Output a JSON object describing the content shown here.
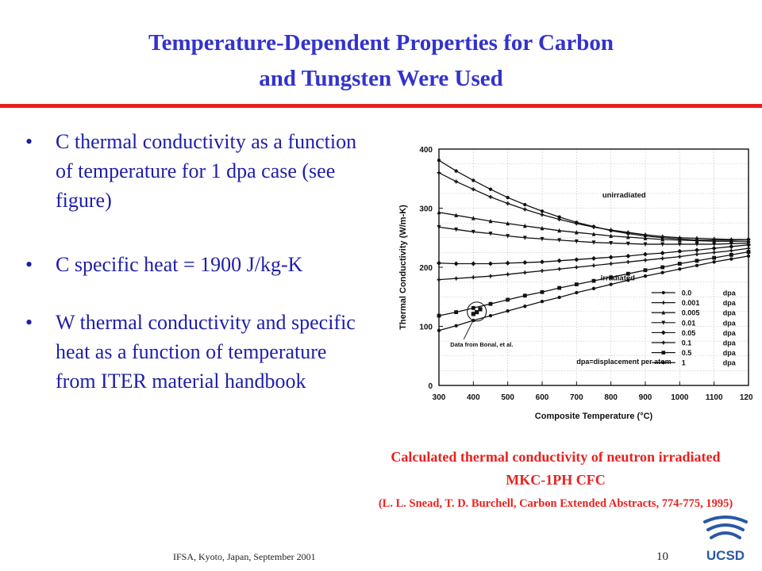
{
  "title": {
    "line1": "Temperature-Dependent Properties for Carbon",
    "line2": "and Tungsten Were Used"
  },
  "bullets": [
    "C thermal conductivity as a function of temperature for 1 dpa case (see figure)",
    "C specific heat = 1900 J/kg-K",
    "W thermal conductivity and specific heat as a function of temperature from ITER material handbook"
  ],
  "bullet_marker": "•",
  "caption": {
    "main": "Calculated thermal conductivity of neutron irradiated MKC-1PH CFC",
    "reference": "(L. L. Snead, T. D. Burchell, Carbon Extended Abstracts, 774-775, 1995)"
  },
  "footer": "IFSA, Kyoto, Japan, September 2001",
  "page_number": "10",
  "logo": {
    "text": "UCSD",
    "color": "#2a58a8"
  },
  "colors": {
    "title": "#3333cc",
    "accent": "#e8211f",
    "body": "#1e1ea8"
  },
  "chart_data": {
    "type": "line",
    "xlabel": "Composite Temperature (°C)",
    "ylabel": "Thermal Conductivity (W/m-K)",
    "xlim": [
      300,
      1200
    ],
    "ylim": [
      0,
      400
    ],
    "xticks": [
      300,
      400,
      500,
      600,
      700,
      800,
      900,
      1000,
      1100,
      1200
    ],
    "yticks": [
      0,
      100,
      200,
      300,
      400
    ],
    "grid": true,
    "legend_position": "bottom-right",
    "legend_unit": "dpa",
    "x": [
      300,
      350,
      400,
      450,
      500,
      550,
      600,
      650,
      700,
      750,
      800,
      850,
      900,
      950,
      1000,
      1050,
      1100,
      1150,
      1200
    ],
    "series": [
      {
        "name": "0.0",
        "marker": "circle",
        "values": [
          381,
          363,
          347,
          332,
          318,
          306,
          295,
          285,
          276,
          269,
          262,
          257,
          253,
          250,
          248,
          246,
          246,
          246,
          247
        ]
      },
      {
        "name": "0.001",
        "marker": "plus",
        "values": [
          360,
          345,
          332,
          319,
          308,
          298,
          289,
          281,
          274,
          268,
          263,
          259,
          255,
          252,
          250,
          249,
          248,
          247,
          247
        ]
      },
      {
        "name": "0.005",
        "marker": "triangle",
        "values": [
          293,
          288,
          283,
          278,
          274,
          270,
          266,
          262,
          259,
          256,
          253,
          251,
          249,
          247,
          246,
          245,
          244,
          244,
          244
        ]
      },
      {
        "name": "0.01",
        "marker": "triangle-down",
        "values": [
          268,
          264,
          260,
          257,
          253,
          250,
          248,
          246,
          244,
          242,
          241,
          240,
          239,
          239,
          239,
          239,
          239,
          240,
          241
        ]
      },
      {
        "name": "0.05",
        "marker": "diamond",
        "values": [
          207,
          206,
          206,
          206,
          207,
          208,
          209,
          211,
          213,
          215,
          217,
          219,
          222,
          224,
          227,
          229,
          232,
          235,
          238
        ]
      },
      {
        "name": "0.1",
        "marker": "plus",
        "values": [
          179,
          181,
          183,
          185,
          188,
          191,
          194,
          197,
          200,
          203,
          206,
          209,
          212,
          215,
          218,
          222,
          225,
          228,
          232
        ]
      },
      {
        "name": "0.5",
        "marker": "square",
        "values": [
          118,
          124,
          131,
          138,
          145,
          152,
          158,
          165,
          171,
          177,
          183,
          189,
          195,
          200,
          206,
          211,
          216,
          221,
          226
        ]
      },
      {
        "name": "1",
        "marker": "circle",
        "values": [
          93,
          101,
          110,
          118,
          126,
          134,
          142,
          149,
          157,
          164,
          171,
          178,
          185,
          191,
          197,
          203,
          209,
          214,
          219
        ]
      }
    ],
    "measured_points": {
      "x": [
        400,
        410,
        420
      ],
      "y": [
        121,
        124,
        129
      ]
    },
    "annotations": [
      "unirradiated",
      "irradiated",
      "Data from Bonal, et al.",
      "dpa=displacement per atom"
    ]
  }
}
